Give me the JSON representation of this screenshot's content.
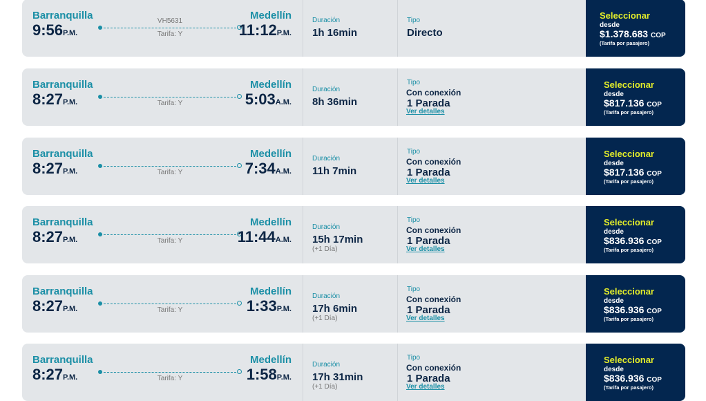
{
  "colors": {
    "card": "#e3e6e9",
    "accent": "#1b8fa6",
    "navy": "#03264f",
    "select": "#e2ec2a"
  },
  "labels": {
    "duration": "Duración",
    "type": "Tipo",
    "select": "Seleccionar",
    "from": "desde",
    "currency": "COP",
    "per_pax": "(Tarifa por pasajero)",
    "details": "Ver detalles"
  },
  "flights": [
    {
      "origin": "Barranquilla",
      "dep": "9:56",
      "dep_ampm": "P.M.",
      "dest": "Medellín",
      "arr": "11:12",
      "arr_ampm": "P.M.",
      "code": "VH5631",
      "fare": "Tarifa: Y",
      "duration": "1h 16min",
      "extra": "",
      "type": "Directo",
      "conn": "",
      "stops": "",
      "price": "$1.378.683"
    },
    {
      "origin": "Barranquilla",
      "dep": "8:27",
      "dep_ampm": "P.M.",
      "dest": "Medellín",
      "arr": "5:03",
      "arr_ampm": "A.M.",
      "code": "",
      "fare": "Tarifa: Y",
      "duration": "8h 36min",
      "extra": "",
      "type": "",
      "conn": "Con conexión",
      "stops": "1 Parada",
      "price": "$817.136"
    },
    {
      "origin": "Barranquilla",
      "dep": "8:27",
      "dep_ampm": "P.M.",
      "dest": "Medellín",
      "arr": "7:34",
      "arr_ampm": "A.M.",
      "code": "",
      "fare": "Tarifa: Y",
      "duration": "11h 7min",
      "extra": "",
      "type": "",
      "conn": "Con conexión",
      "stops": "1 Parada",
      "price": "$817.136"
    },
    {
      "origin": "Barranquilla",
      "dep": "8:27",
      "dep_ampm": "P.M.",
      "dest": "Medellín",
      "arr": "11:44",
      "arr_ampm": "A.M.",
      "code": "",
      "fare": "Tarifa: Y",
      "duration": "15h 17min",
      "extra": "(+1 Día)",
      "type": "",
      "conn": "Con conexión",
      "stops": "1 Parada",
      "price": "$836.936"
    },
    {
      "origin": "Barranquilla",
      "dep": "8:27",
      "dep_ampm": "P.M.",
      "dest": "Medellín",
      "arr": "1:33",
      "arr_ampm": "P.M.",
      "code": "",
      "fare": "Tarifa: Y",
      "duration": "17h 6min",
      "extra": "(+1 Día)",
      "type": "",
      "conn": "Con conexión",
      "stops": "1 Parada",
      "price": "$836.936"
    },
    {
      "origin": "Barranquilla",
      "dep": "8:27",
      "dep_ampm": "P.M.",
      "dest": "Medellín",
      "arr": "1:58",
      "arr_ampm": "P.M.",
      "code": "",
      "fare": "Tarifa: Y",
      "duration": "17h 31min",
      "extra": "(+1 Día)",
      "type": "",
      "conn": "Con conexión",
      "stops": "1 Parada",
      "price": "$836.936"
    }
  ]
}
